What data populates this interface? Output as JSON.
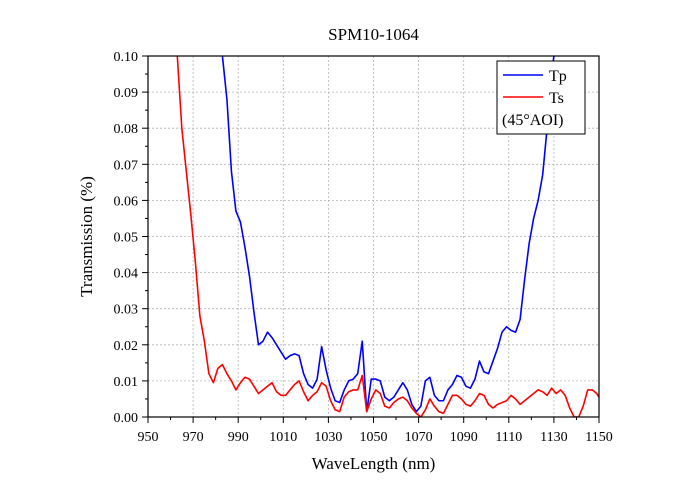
{
  "chart_data": {
    "type": "line",
    "title": "SPM10-1064",
    "xlabel": "WaveLength (nm)",
    "ylabel": "Transmission (%)",
    "xlim": [
      950,
      1150
    ],
    "ylim": [
      0,
      0.1
    ],
    "xticks": [
      950,
      970,
      990,
      1010,
      1030,
      1050,
      1070,
      1090,
      1110,
      1130,
      1150
    ],
    "xtick_labels": [
      "950",
      "970",
      "990",
      "1010",
      "1030",
      "1050",
      "1070",
      "1090",
      "1110",
      "1130",
      "1150"
    ],
    "yticks": [
      0,
      0.01,
      0.02,
      0.03,
      0.04,
      0.05,
      0.06,
      0.07,
      0.08,
      0.09,
      0.1
    ],
    "ytick_labels": [
      "0.00",
      "0.01",
      "0.02",
      "0.03",
      "0.04",
      "0.05",
      "0.06",
      "0.07",
      "0.08",
      "0.09",
      "0.10"
    ],
    "grid": true,
    "legend": {
      "position": "top-right",
      "note": "(45°AOI)"
    },
    "series": [
      {
        "name": "Tp",
        "color": "#0000ff",
        "x": [
          983,
          985,
          987,
          989,
          991,
          993,
          995,
          997,
          999,
          1001,
          1003,
          1005,
          1007,
          1009,
          1011,
          1013,
          1015,
          1017,
          1019,
          1021,
          1023,
          1025,
          1027,
          1029,
          1031,
          1033,
          1035,
          1037,
          1039,
          1041,
          1043,
          1045,
          1047,
          1049,
          1051,
          1053,
          1055,
          1057,
          1059,
          1061,
          1063,
          1065,
          1067,
          1069,
          1071,
          1073,
          1075,
          1077,
          1079,
          1081,
          1083,
          1085,
          1087,
          1089,
          1091,
          1093,
          1095,
          1097,
          1099,
          1101,
          1103,
          1105,
          1107,
          1109,
          1111,
          1113,
          1115,
          1117,
          1119,
          1121,
          1123,
          1125,
          1127,
          1129,
          1130
        ],
        "y": [
          0.1,
          0.088,
          0.068,
          0.057,
          0.054,
          0.047,
          0.039,
          0.029,
          0.02,
          0.021,
          0.0235,
          0.022,
          0.02,
          0.018,
          0.016,
          0.017,
          0.0175,
          0.017,
          0.012,
          0.009,
          0.008,
          0.0105,
          0.0195,
          0.013,
          0.008,
          0.0045,
          0.004,
          0.0075,
          0.01,
          0.0105,
          0.012,
          0.021,
          0.0015,
          0.0105,
          0.0105,
          0.01,
          0.0055,
          0.0045,
          0.0055,
          0.0075,
          0.0095,
          0.0075,
          0.0035,
          0.0015,
          0.003,
          0.01,
          0.011,
          0.006,
          0.0045,
          0.0045,
          0.0075,
          0.009,
          0.0115,
          0.011,
          0.0085,
          0.008,
          0.0105,
          0.0155,
          0.0125,
          0.012,
          0.0155,
          0.019,
          0.0235,
          0.025,
          0.024,
          0.0235,
          0.027,
          0.038,
          0.048,
          0.055,
          0.06,
          0.067,
          0.08,
          0.095,
          0.1
        ]
      },
      {
        "name": "Ts",
        "color": "#ff0000",
        "x": [
          963,
          965,
          967,
          969,
          971,
          973,
          975,
          977,
          979,
          981,
          983,
          985,
          987,
          989,
          991,
          993,
          995,
          997,
          999,
          1001,
          1003,
          1005,
          1007,
          1009,
          1011,
          1013,
          1015,
          1017,
          1019,
          1021,
          1023,
          1025,
          1027,
          1029,
          1031,
          1033,
          1035,
          1037,
          1039,
          1041,
          1043,
          1045,
          1047,
          1049,
          1051,
          1053,
          1055,
          1057,
          1059,
          1061,
          1063,
          1065,
          1067,
          1069,
          1071,
          1073,
          1075,
          1077,
          1079,
          1081,
          1083,
          1085,
          1087,
          1089,
          1091,
          1093,
          1095,
          1097,
          1099,
          1101,
          1103,
          1105,
          1107,
          1109,
          1111,
          1113,
          1115,
          1117,
          1119,
          1121,
          1123,
          1125,
          1127,
          1129,
          1131,
          1133,
          1135,
          1137,
          1139,
          1141,
          1143,
          1145,
          1147,
          1149,
          1150
        ],
        "y": [
          0.1,
          0.08,
          0.068,
          0.056,
          0.043,
          0.028,
          0.021,
          0.012,
          0.0095,
          0.0135,
          0.0145,
          0.012,
          0.01,
          0.0075,
          0.0095,
          0.011,
          0.0105,
          0.0085,
          0.0065,
          0.0075,
          0.0085,
          0.0095,
          0.007,
          0.006,
          0.006,
          0.0075,
          0.009,
          0.01,
          0.007,
          0.0045,
          0.006,
          0.007,
          0.0095,
          0.0085,
          0.0045,
          0.002,
          0.0015,
          0.0055,
          0.007,
          0.0075,
          0.0075,
          0.0115,
          0.0015,
          0.005,
          0.0075,
          0.0065,
          0.003,
          0.0025,
          0.004,
          0.005,
          0.0055,
          0.0045,
          0.0025,
          0.001,
          0.0,
          0.002,
          0.005,
          0.003,
          0.0015,
          0.001,
          0.0035,
          0.006,
          0.006,
          0.005,
          0.0035,
          0.003,
          0.0045,
          0.0065,
          0.006,
          0.0035,
          0.0025,
          0.0035,
          0.004,
          0.0045,
          0.006,
          0.005,
          0.0035,
          0.0045,
          0.0055,
          0.0065,
          0.0075,
          0.007,
          0.006,
          0.008,
          0.0065,
          0.0075,
          0.006,
          0.0025,
          0.0,
          0.0,
          0.003,
          0.0075,
          0.0075,
          0.0065,
          0.0055
        ]
      }
    ]
  }
}
